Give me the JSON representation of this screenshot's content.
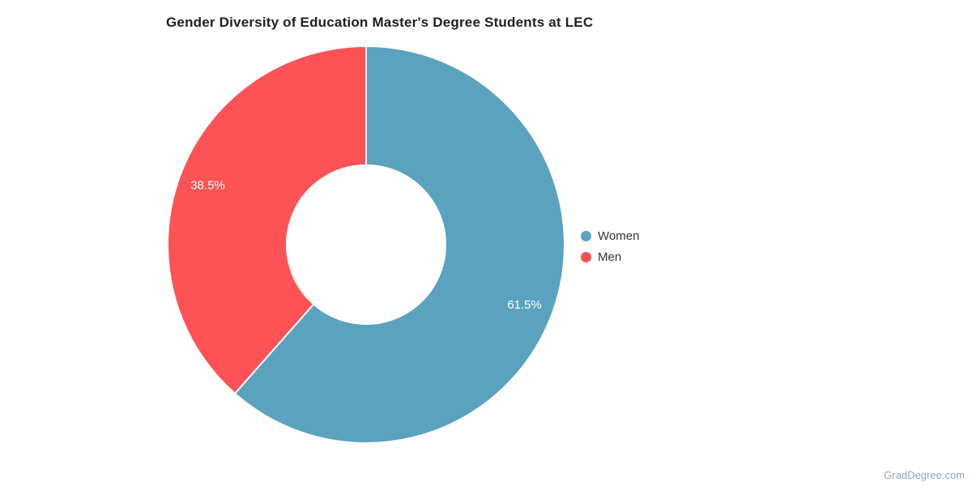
{
  "chart_data": {
    "type": "pie",
    "subtype": "donut",
    "title": "Gender Diversity of Education Master's Degree Students at LEC",
    "series": [
      {
        "name": "Women",
        "value": 61.5,
        "label": "61.5%",
        "color": "#5ba2be"
      },
      {
        "name": "Men",
        "value": 38.5,
        "label": "38.5%",
        "color": "#fd5356"
      }
    ],
    "total": 100,
    "start_angle_deg": 0,
    "direction": "clockwise",
    "inner_radius_ratio": 0.4,
    "slice_label_color": "#ffffff",
    "slice_border_color": "#ffffff",
    "legend_position": "right",
    "background_color": "#ffffff"
  },
  "watermark": {
    "text": "GradDegree.com",
    "color": "#8ca8be"
  }
}
